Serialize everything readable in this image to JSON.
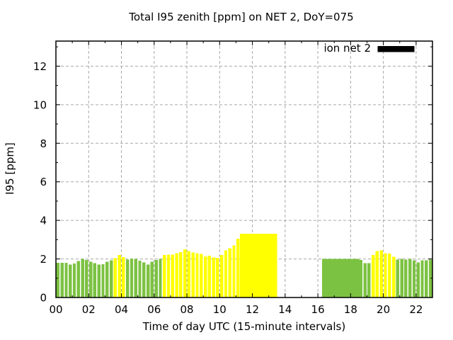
{
  "legend": {
    "label": "ion net 2",
    "swatch_color": "#000000"
  },
  "chart_data": {
    "type": "bar",
    "title": "Total I95 zenith [ppm] on NET 2, DoY=075",
    "xlabel": "Time of day UTC (15-minute intervals)",
    "ylabel": "I95 [ppm]",
    "xlim_hours": [
      0,
      23
    ],
    "ylim": [
      0,
      13.3
    ],
    "y_major_ticks": [
      0,
      2,
      4,
      6,
      8,
      10,
      12
    ],
    "y_minor_ticks": [
      1,
      3,
      5,
      7,
      9,
      11,
      13
    ],
    "x_major_ticks": [
      {
        "hour": 0,
        "label": "00"
      },
      {
        "hour": 2,
        "label": "02"
      },
      {
        "hour": 4,
        "label": "04"
      },
      {
        "hour": 6,
        "label": "06"
      },
      {
        "hour": 8,
        "label": "08"
      },
      {
        "hour": 10,
        "label": "10"
      },
      {
        "hour": 12,
        "label": "12"
      },
      {
        "hour": 14,
        "label": "14"
      },
      {
        "hour": 16,
        "label": "16"
      },
      {
        "hour": 18,
        "label": "18"
      },
      {
        "hour": 20,
        "label": "20"
      },
      {
        "hour": 22,
        "label": "22"
      }
    ],
    "x_minor_tick_hours": [
      1,
      3,
      5,
      7,
      9,
      11,
      13,
      15,
      17,
      19,
      21,
      23
    ],
    "grid": "dashed gray at major ticks, both axes",
    "legend_position": "top-right inside plot",
    "interval_minutes": 15,
    "colors": {
      "green": "#7cc242",
      "yellow": "#ffff00"
    },
    "bars": [
      {
        "t": "00:00",
        "v": 1.8,
        "c": "green"
      },
      {
        "t": "00:15",
        "v": 1.8,
        "c": "green"
      },
      {
        "t": "00:30",
        "v": 1.8,
        "c": "green"
      },
      {
        "t": "00:45",
        "v": 1.7,
        "c": "green"
      },
      {
        "t": "01:00",
        "v": 1.76,
        "c": "green"
      },
      {
        "t": "01:15",
        "v": 1.89,
        "c": "green"
      },
      {
        "t": "01:30",
        "v": 2.01,
        "c": "green"
      },
      {
        "t": "01:45",
        "v": 1.95,
        "c": "green"
      },
      {
        "t": "02:00",
        "v": 1.85,
        "c": "green"
      },
      {
        "t": "02:15",
        "v": 1.79,
        "c": "green"
      },
      {
        "t": "02:30",
        "v": 1.7,
        "c": "green"
      },
      {
        "t": "02:45",
        "v": 1.73,
        "c": "green"
      },
      {
        "t": "03:00",
        "v": 1.85,
        "c": "green"
      },
      {
        "t": "03:15",
        "v": 1.93,
        "c": "green"
      },
      {
        "t": "03:30",
        "v": 2.04,
        "c": "yellow"
      },
      {
        "t": "03:45",
        "v": 2.21,
        "c": "yellow"
      },
      {
        "t": "04:00",
        "v": 2.09,
        "c": "yellow"
      },
      {
        "t": "04:15",
        "v": 1.96,
        "c": "green"
      },
      {
        "t": "04:30",
        "v": 2.02,
        "c": "green"
      },
      {
        "t": "04:45",
        "v": 2.0,
        "c": "green"
      },
      {
        "t": "05:00",
        "v": 1.91,
        "c": "green"
      },
      {
        "t": "05:15",
        "v": 1.82,
        "c": "green"
      },
      {
        "t": "05:30",
        "v": 1.71,
        "c": "green"
      },
      {
        "t": "05:45",
        "v": 1.86,
        "c": "green"
      },
      {
        "t": "06:00",
        "v": 1.94,
        "c": "green"
      },
      {
        "t": "06:15",
        "v": 2.0,
        "c": "green"
      },
      {
        "t": "06:30",
        "v": 2.21,
        "c": "yellow"
      },
      {
        "t": "06:45",
        "v": 2.23,
        "c": "yellow"
      },
      {
        "t": "07:00",
        "v": 2.23,
        "c": "yellow"
      },
      {
        "t": "07:15",
        "v": 2.29,
        "c": "yellow"
      },
      {
        "t": "07:30",
        "v": 2.35,
        "c": "yellow"
      },
      {
        "t": "07:45",
        "v": 2.49,
        "c": "yellow"
      },
      {
        "t": "08:00",
        "v": 2.41,
        "c": "yellow"
      },
      {
        "t": "08:15",
        "v": 2.33,
        "c": "yellow"
      },
      {
        "t": "08:30",
        "v": 2.29,
        "c": "yellow"
      },
      {
        "t": "08:45",
        "v": 2.26,
        "c": "yellow"
      },
      {
        "t": "09:00",
        "v": 2.14,
        "c": "yellow"
      },
      {
        "t": "09:15",
        "v": 2.16,
        "c": "yellow"
      },
      {
        "t": "09:30",
        "v": 2.08,
        "c": "yellow"
      },
      {
        "t": "09:45",
        "v": 2.05,
        "c": "yellow"
      },
      {
        "t": "10:00",
        "v": 2.2,
        "c": "yellow"
      },
      {
        "t": "10:15",
        "v": 2.45,
        "c": "yellow"
      },
      {
        "t": "10:30",
        "v": 2.55,
        "c": "yellow"
      },
      {
        "t": "10:45",
        "v": 2.7,
        "c": "yellow"
      },
      {
        "t": "11:00",
        "v": 3.05,
        "c": "yellow"
      },
      {
        "t": "11:15",
        "v": 3.3,
        "c": "yellow",
        "solid": true
      },
      {
        "t": "11:30",
        "v": 3.3,
        "c": "yellow",
        "solid": true
      },
      {
        "t": "11:45",
        "v": 3.3,
        "c": "yellow",
        "solid": true
      },
      {
        "t": "12:00",
        "v": 3.3,
        "c": "yellow",
        "solid": true
      },
      {
        "t": "12:15",
        "v": 3.3,
        "c": "yellow",
        "solid": true
      },
      {
        "t": "12:30",
        "v": 3.3,
        "c": "yellow",
        "solid": true
      },
      {
        "t": "12:45",
        "v": 3.3,
        "c": "yellow",
        "solid": true
      },
      {
        "t": "13:00",
        "v": 3.3,
        "c": "yellow",
        "solid": true
      },
      {
        "t": "13:15",
        "v": 3.3,
        "c": "yellow",
        "solid": true
      },
      {
        "t": "13:30",
        "v": null
      },
      {
        "t": "13:45",
        "v": null
      },
      {
        "t": "14:00",
        "v": null
      },
      {
        "t": "14:15",
        "v": null
      },
      {
        "t": "14:30",
        "v": null
      },
      {
        "t": "14:45",
        "v": null
      },
      {
        "t": "15:00",
        "v": null
      },
      {
        "t": "15:15",
        "v": null
      },
      {
        "t": "15:30",
        "v": null
      },
      {
        "t": "15:45",
        "v": null
      },
      {
        "t": "16:00",
        "v": null
      },
      {
        "t": "16:15",
        "v": 2.0,
        "c": "green",
        "solid": true
      },
      {
        "t": "16:30",
        "v": 2.0,
        "c": "green",
        "solid": true
      },
      {
        "t": "16:45",
        "v": 2.0,
        "c": "green",
        "solid": true
      },
      {
        "t": "17:00",
        "v": 2.0,
        "c": "green",
        "solid": true
      },
      {
        "t": "17:15",
        "v": 2.0,
        "c": "green",
        "solid": true
      },
      {
        "t": "17:30",
        "v": 2.0,
        "c": "green",
        "solid": true
      },
      {
        "t": "17:45",
        "v": 2.0,
        "c": "green",
        "solid": true
      },
      {
        "t": "18:00",
        "v": 2.0,
        "c": "green",
        "solid": true
      },
      {
        "t": "18:15",
        "v": 2.0,
        "c": "green",
        "solid": true
      },
      {
        "t": "18:30",
        "v": 1.95,
        "c": "green"
      },
      {
        "t": "18:45",
        "v": 1.78,
        "c": "green"
      },
      {
        "t": "19:00",
        "v": 1.78,
        "c": "green"
      },
      {
        "t": "19:15",
        "v": 2.2,
        "c": "yellow"
      },
      {
        "t": "19:30",
        "v": 2.4,
        "c": "yellow"
      },
      {
        "t": "19:45",
        "v": 2.45,
        "c": "yellow"
      },
      {
        "t": "20:00",
        "v": 2.3,
        "c": "yellow"
      },
      {
        "t": "20:15",
        "v": 2.27,
        "c": "yellow"
      },
      {
        "t": "20:30",
        "v": 2.12,
        "c": "yellow"
      },
      {
        "t": "20:45",
        "v": 1.96,
        "c": "green"
      },
      {
        "t": "21:00",
        "v": 2.0,
        "c": "green"
      },
      {
        "t": "21:15",
        "v": 1.96,
        "c": "green"
      },
      {
        "t": "21:30",
        "v": 2.0,
        "c": "green"
      },
      {
        "t": "21:45",
        "v": 1.93,
        "c": "green"
      },
      {
        "t": "22:00",
        "v": 1.81,
        "c": "green"
      },
      {
        "t": "22:15",
        "v": 1.93,
        "c": "green"
      },
      {
        "t": "22:30",
        "v": 1.93,
        "c": "green"
      },
      {
        "t": "22:45",
        "v": 1.96,
        "c": "green"
      }
    ]
  }
}
